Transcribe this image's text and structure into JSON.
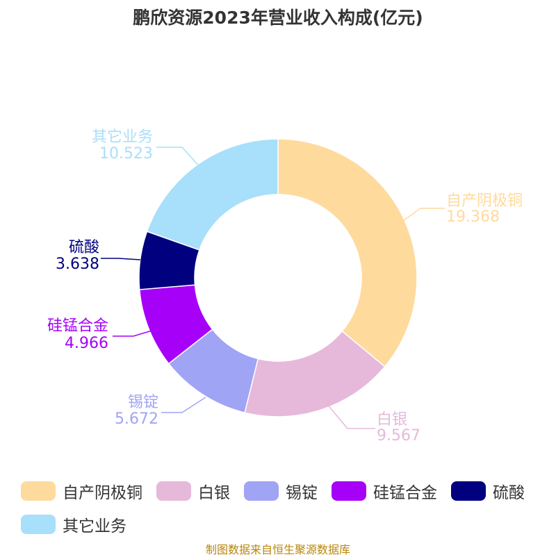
{
  "chart_data": {
    "type": "pie",
    "title": "鹏欣资源2023年营业收入构成(亿元)",
    "donut": true,
    "slices": [
      {
        "label": "自产阴极铜",
        "value": 19.368,
        "value_text": "19.368",
        "color": "#FFDA9D"
      },
      {
        "label": "白银",
        "value": 9.567,
        "value_text": "9.567",
        "color": "#E6B9DA"
      },
      {
        "label": "锡锭",
        "value": 5.672,
        "value_text": "5.672",
        "color": "#A0A4F5"
      },
      {
        "label": "硅锰合金",
        "value": 4.966,
        "value_text": "4.966",
        "color": "#A600F9"
      },
      {
        "label": "硫酸",
        "value": 3.638,
        "value_text": "3.638",
        "color": "#01007F"
      },
      {
        "label": "其它业务",
        "value": 10.523,
        "value_text": "10.523",
        "color": "#A8DFFA"
      }
    ],
    "legend_position": "bottom"
  },
  "footer": "制图数据来自恒生聚源数据库"
}
